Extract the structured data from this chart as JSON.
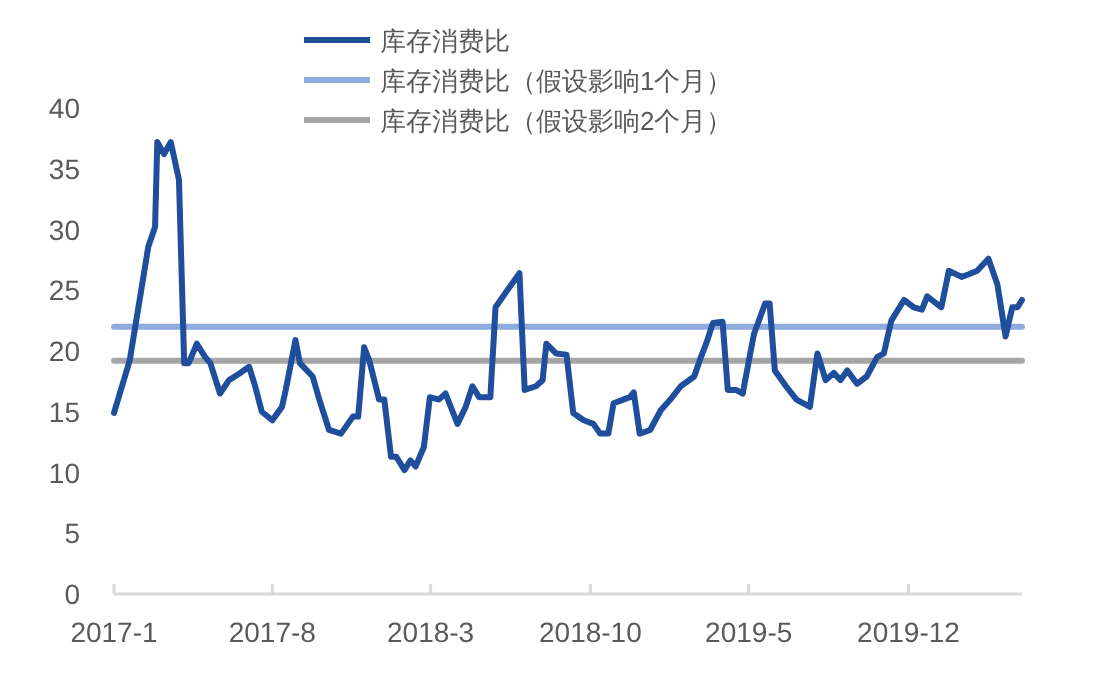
{
  "chart_data": {
    "type": "line",
    "legend": "top",
    "grid": false,
    "line_style": "solid",
    "marker": "none",
    "xlim": [
      "2017-01-01",
      "2020-05-01"
    ],
    "xticks": [
      {
        "value": "2017-01-01",
        "label": "2017-1"
      },
      {
        "value": "2017-08-01",
        "label": "2017-8"
      },
      {
        "value": "2018-03-01",
        "label": "2018-3"
      },
      {
        "value": "2018-10-01",
        "label": "2018-10"
      },
      {
        "value": "2019-05-01",
        "label": "2019-5"
      },
      {
        "value": "2019-12-01",
        "label": "2019-12"
      }
    ],
    "ylim": [
      0,
      40
    ],
    "yticks": [
      0,
      5,
      10,
      15,
      20,
      25,
      30,
      35,
      40
    ],
    "series": [
      {
        "name": "库存消费比",
        "color": "#1f4e9c",
        "x": [
          "2017-01-01",
          "2017-01-22",
          "2017-02-16",
          "2017-02-25",
          "2017-02-28",
          "2017-03-09",
          "2017-03-18",
          "2017-03-29",
          "2017-04-05",
          "2017-04-11",
          "2017-04-22",
          "2017-05-03",
          "2017-05-10",
          "2017-05-23",
          "2017-06-04",
          "2017-06-17",
          "2017-07-01",
          "2017-07-09",
          "2017-07-18",
          "2017-08-01",
          "2017-08-14",
          "2017-08-19",
          "2017-09-01",
          "2017-09-07",
          "2017-09-24",
          "2017-10-03",
          "2017-10-16",
          "2017-11-01",
          "2017-11-17",
          "2017-11-24",
          "2017-12-02",
          "2017-12-09",
          "2017-12-22",
          "2017-12-29",
          "2018-01-07",
          "2018-01-14",
          "2018-01-25",
          "2018-02-02",
          "2018-02-09",
          "2018-02-20",
          "2018-02-28",
          "2018-03-12",
          "2018-03-21",
          "2018-04-06",
          "2018-04-17",
          "2018-04-26",
          "2018-05-05",
          "2018-05-20",
          "2018-05-27",
          "2018-06-06",
          "2018-06-28",
          "2018-07-05",
          "2018-07-20",
          "2018-07-29",
          "2018-08-03",
          "2018-08-16",
          "2018-08-30",
          "2018-09-08",
          "2018-09-22",
          "2018-10-05",
          "2018-10-14",
          "2018-10-25",
          "2018-11-01",
          "2018-11-14",
          "2018-11-23",
          "2018-11-28",
          "2018-12-06",
          "2018-12-20",
          "2019-01-03",
          "2019-01-16",
          "2019-01-30",
          "2019-02-17",
          "2019-02-26",
          "2019-03-05",
          "2019-03-14",
          "2019-03-27",
          "2019-04-03",
          "2019-04-14",
          "2019-04-23",
          "2019-05-08",
          "2019-05-23",
          "2019-05-29",
          "2019-06-05",
          "2019-06-20",
          "2019-07-04",
          "2019-07-22",
          "2019-08-01",
          "2019-08-12",
          "2019-08-23",
          "2019-09-01",
          "2019-09-10",
          "2019-09-23",
          "2019-10-06",
          "2019-10-20",
          "2019-10-29",
          "2019-11-08",
          "2019-11-25",
          "2019-12-08",
          "2019-12-19",
          "2019-12-26",
          "2020-01-14",
          "2020-01-24",
          "2020-02-10",
          "2020-02-19",
          "2020-03-02",
          "2020-03-17",
          "2020-03-29",
          "2020-04-09",
          "2020-04-18",
          "2020-04-25",
          "2020-05-01"
        ],
        "values": [
          14.9,
          19.2,
          28.6,
          30.2,
          37.2,
          36.2,
          37.2,
          34.1,
          19.0,
          19.0,
          20.6,
          19.5,
          19.0,
          16.5,
          17.6,
          18.1,
          18.7,
          17.1,
          15.0,
          14.3,
          15.4,
          16.8,
          20.9,
          19.0,
          17.9,
          16.0,
          13.5,
          13.2,
          14.6,
          14.6,
          20.3,
          19.2,
          16.0,
          16.0,
          11.3,
          11.3,
          10.2,
          11.0,
          10.5,
          12.1,
          16.2,
          16.0,
          16.5,
          14.0,
          15.4,
          17.1,
          16.2,
          16.2,
          23.6,
          24.5,
          26.4,
          16.8,
          17.1,
          17.6,
          20.6,
          19.8,
          19.7,
          14.9,
          14.3,
          14.0,
          13.2,
          13.2,
          15.7,
          16.0,
          16.2,
          16.6,
          13.2,
          13.5,
          15.1,
          16.0,
          17.1,
          17.9,
          19.5,
          20.6,
          22.3,
          22.4,
          16.8,
          16.8,
          16.5,
          21.4,
          23.9,
          23.9,
          18.4,
          17.1,
          16.0,
          15.4,
          19.8,
          17.6,
          18.2,
          17.6,
          18.4,
          17.3,
          17.9,
          19.5,
          19.8,
          22.5,
          24.2,
          23.6,
          23.4,
          24.5,
          23.6,
          26.6,
          26.1,
          26.3,
          26.6,
          27.6,
          25.5,
          21.2,
          23.6,
          23.6,
          24.2
        ]
      },
      {
        "name": "库存消费比（假设影响1个月）",
        "color": "#8faadc",
        "x": [
          "2017-01-01",
          "2020-05-01"
        ],
        "values": [
          22,
          22
        ]
      },
      {
        "name": "库存消费比（假设影响2个月）",
        "color": "#a6a6a6",
        "x": [
          "2017-01-01",
          "2020-05-01"
        ],
        "values": [
          19.2,
          19.2
        ]
      }
    ]
  }
}
